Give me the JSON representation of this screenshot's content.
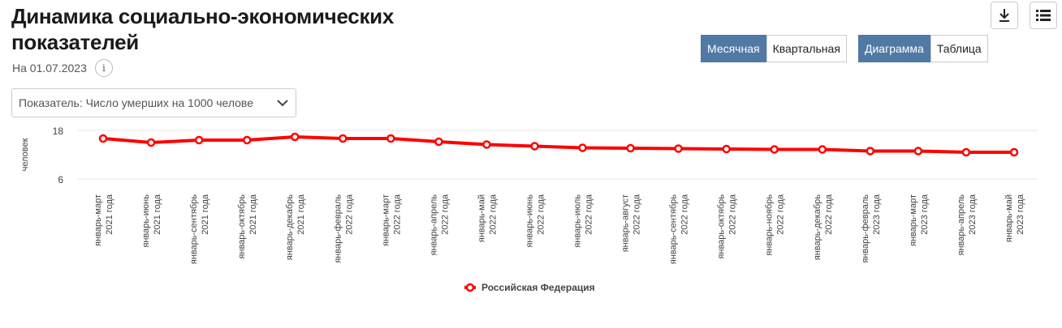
{
  "header": {
    "title_line1": "Динамика социально-экономических",
    "title_line2": "показателей",
    "date": "На 01.07.2023",
    "info_label": "i"
  },
  "toolbar": {
    "download_icon": "download-icon",
    "menu_icon": "menu-icon",
    "period_options": [
      "Месячная",
      "Квартальная"
    ],
    "period_selected": "Месячная",
    "view_options": [
      "Диаграмма",
      "Таблица"
    ],
    "view_selected": "Диаграмма"
  },
  "indicator_select": {
    "value": "Показатель: Число умерших на 1000 челове"
  },
  "colors": {
    "accent": "#5079a5",
    "series": "#ff0000"
  },
  "chart_data": {
    "type": "line",
    "ylabel": "человек",
    "ylim": [
      6,
      18
    ],
    "yticks": [
      6,
      18
    ],
    "grid": true,
    "legend_position": "bottom",
    "categories": [
      [
        "январь-март",
        "2021 года"
      ],
      [
        "январь-июнь",
        "2021 года"
      ],
      [
        "январь-сентябрь",
        "2021 года"
      ],
      [
        "январь-октябрь",
        "2021 года"
      ],
      [
        "январь-декабрь",
        "2021 года"
      ],
      [
        "январь-февраль",
        "2022 года"
      ],
      [
        "январь-март",
        "2022 года"
      ],
      [
        "январь-апрель",
        "2022 года"
      ],
      [
        "январь-май",
        "2022 года"
      ],
      [
        "январь-июнь",
        "2022 года"
      ],
      [
        "январь-июль",
        "2022 года"
      ],
      [
        "январь-август",
        "2022 года"
      ],
      [
        "январь-сентябрь",
        "2022 года"
      ],
      [
        "январь-октябрь",
        "2022 года"
      ],
      [
        "январь-ноябрь",
        "2022 года"
      ],
      [
        "январь-декабрь",
        "2022 года"
      ],
      [
        "январь-февраль",
        "2023 года"
      ],
      [
        "январь-март",
        "2023 года"
      ],
      [
        "январь-апрель",
        "2023 года"
      ],
      [
        "январь-май",
        "2023 года"
      ]
    ],
    "series": [
      {
        "name": "Российская Федерация",
        "values": [
          16.0,
          15.0,
          15.6,
          15.6,
          16.4,
          16.0,
          16.0,
          15.2,
          14.5,
          14.1,
          13.7,
          13.6,
          13.5,
          13.4,
          13.3,
          13.3,
          12.9,
          12.9,
          12.6,
          12.6
        ]
      }
    ]
  }
}
